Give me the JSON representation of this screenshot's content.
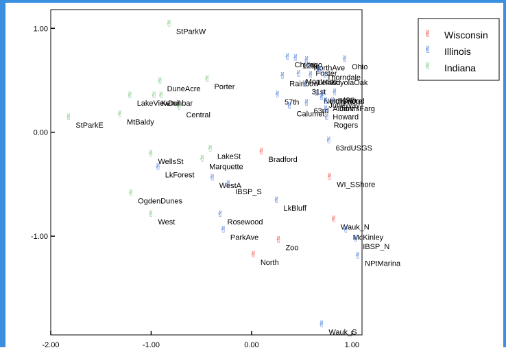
{
  "chart_data": {
    "type": "scatter",
    "title": "",
    "xlabel": "",
    "ylabel": "",
    "xlim": [
      -2.0,
      1.1
    ],
    "ylim": [
      -1.95,
      1.18
    ],
    "xticks": [
      -2.0,
      -1.0,
      0.0,
      1.0
    ],
    "xtick_labels": [
      "-2.00",
      "-1.00",
      "0.00",
      "1.00"
    ],
    "yticks": [
      1.0,
      0.0,
      -1.0
    ],
    "ytick_labels": [
      "1.00",
      "0.00",
      "-1.00"
    ],
    "grid": false,
    "legend": "top-right outside",
    "marker": "✌",
    "series": [
      {
        "name": "Wisconsin",
        "color": "#e8453c",
        "points": [
          {
            "label": "Bradford",
            "x": 0.1,
            "y": -0.18
          },
          {
            "label": "WI_SShore",
            "x": 0.78,
            "y": -0.42
          },
          {
            "label": "Wauk_N",
            "x": 0.82,
            "y": -0.83
          },
          {
            "label": "Zoo",
            "x": 0.27,
            "y": -1.03
          },
          {
            "label": "North",
            "x": 0.02,
            "y": -1.17
          }
        ]
      },
      {
        "name": "Illinois",
        "color": "#3b6fd6",
        "points": [
          {
            "label": "Chicago",
            "x": 0.36,
            "y": 0.73
          },
          {
            "label": "12th",
            "x": 0.44,
            "y": 0.72
          },
          {
            "label": "NorthAve",
            "x": 0.55,
            "y": 0.7
          },
          {
            "label": "Foster",
            "x": 0.57,
            "y": 0.65
          },
          {
            "label": "Ohio",
            "x": 0.93,
            "y": 0.71
          },
          {
            "label": "Thorndale",
            "x": 0.68,
            "y": 0.61
          },
          {
            "label": "Montrose",
            "x": 0.47,
            "y": 0.57
          },
          {
            "label": "Leland",
            "x": 0.59,
            "y": 0.56
          },
          {
            "label": "LoyolaOak",
            "x": 0.73,
            "y": 0.56
          },
          {
            "label": "Rainbow",
            "x": 0.31,
            "y": 0.55
          },
          {
            "label": "31st",
            "x": 0.53,
            "y": 0.47
          },
          {
            "label": "57th",
            "x": 0.26,
            "y": 0.37
          },
          {
            "label": "NorthShore",
            "x": 0.65,
            "y": 0.38
          },
          {
            "label": "Hollywood",
            "x": 0.71,
            "y": 0.38
          },
          {
            "label": "49th",
            "x": 0.83,
            "y": 0.39
          },
          {
            "label": "JuneWay",
            "x": 0.7,
            "y": 0.34
          },
          {
            "label": "Albion",
            "x": 0.74,
            "y": 0.31
          },
          {
            "label": "JarvisFarg",
            "x": 0.81,
            "y": 0.31
          },
          {
            "label": "63rd",
            "x": 0.55,
            "y": 0.29
          },
          {
            "label": "Calumet",
            "x": 0.38,
            "y": 0.26
          },
          {
            "label": "Howard",
            "x": 0.74,
            "y": 0.23
          },
          {
            "label": "Rogers",
            "x": 0.75,
            "y": 0.15
          },
          {
            "label": "63rdUSGS",
            "x": 0.77,
            "y": -0.07
          },
          {
            "label": "LkForest",
            "x": -0.93,
            "y": -0.33
          },
          {
            "label": "WestA",
            "x": -0.39,
            "y": -0.43
          },
          {
            "label": "IBSP_S",
            "x": -0.23,
            "y": -0.49
          },
          {
            "label": "LkBluff",
            "x": 0.25,
            "y": -0.65
          },
          {
            "label": "Rosewood",
            "x": -0.31,
            "y": -0.78
          },
          {
            "label": "ParkAve",
            "x": -0.28,
            "y": -0.93
          },
          {
            "label": "McKinley",
            "x": 0.94,
            "y": -0.93
          },
          {
            "label": "IBSP_N",
            "x": 1.04,
            "y": -1.02
          },
          {
            "label": "NPtMarina",
            "x": 1.06,
            "y": -1.18
          },
          {
            "label": "Wauk_S",
            "x": 0.7,
            "y": -1.84
          }
        ]
      },
      {
        "name": "Indiana",
        "color": "#74c476",
        "points": [
          {
            "label": "StParkW",
            "x": -0.82,
            "y": 1.05
          },
          {
            "label": "DuneAcre",
            "x": -0.91,
            "y": 0.5
          },
          {
            "label": "Porter",
            "x": -0.44,
            "y": 0.52
          },
          {
            "label": "LakeView",
            "x": -1.21,
            "y": 0.36
          },
          {
            "label": "Kemil",
            "x": -0.97,
            "y": 0.36
          },
          {
            "label": "Dunbar",
            "x": -0.9,
            "y": 0.36
          },
          {
            "label": "Central",
            "x": -0.72,
            "y": 0.25
          },
          {
            "label": "MtBaldy",
            "x": -1.31,
            "y": 0.18
          },
          {
            "label": "StParkE",
            "x": -1.82,
            "y": 0.15
          },
          {
            "label": "LakeSt",
            "x": -0.41,
            "y": -0.15
          },
          {
            "label": "WellsSt",
            "x": -1.0,
            "y": -0.2
          },
          {
            "label": "Marquette",
            "x": -0.49,
            "y": -0.25
          },
          {
            "label": "OgdenDunes",
            "x": -1.2,
            "y": -0.58
          },
          {
            "label": "West",
            "x": -1.0,
            "y": -0.78
          }
        ]
      }
    ]
  },
  "legend": {
    "items": [
      {
        "label": "Wisconsin",
        "color": "#e8453c"
      },
      {
        "label": "Illinois",
        "color": "#3b6fd6"
      },
      {
        "label": "Indiana",
        "color": "#74c476"
      }
    ]
  }
}
